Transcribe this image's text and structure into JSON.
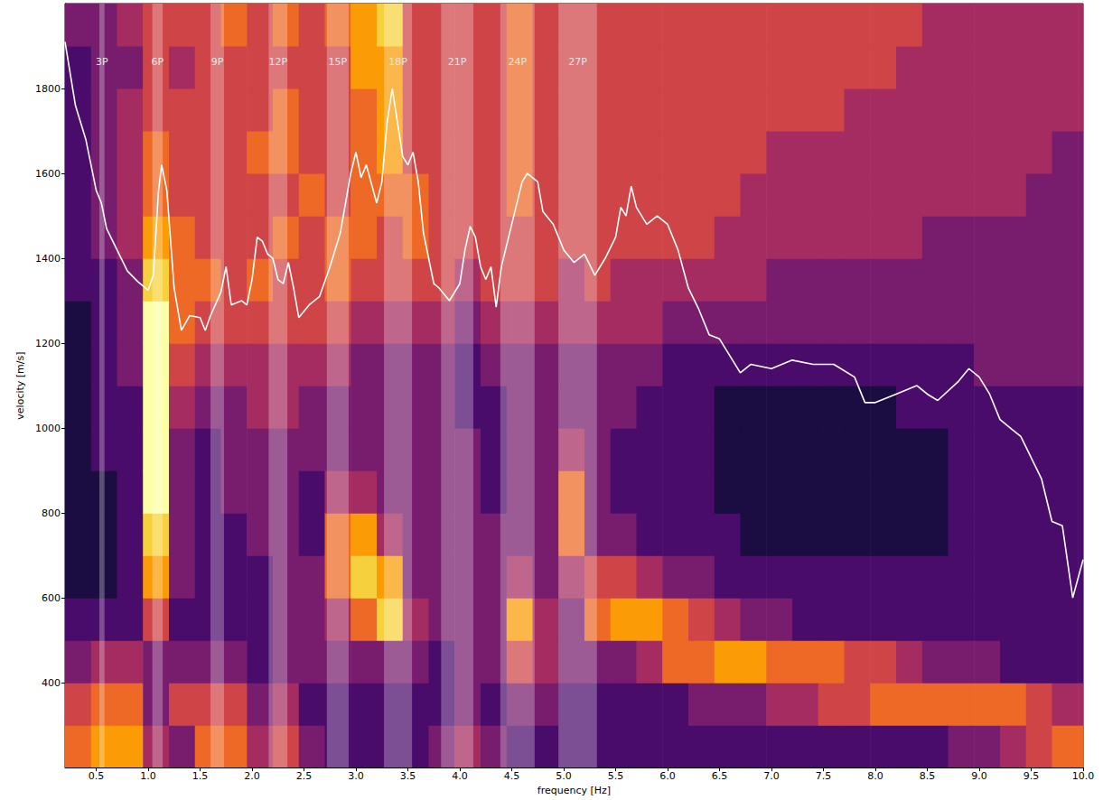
{
  "chart_data": {
    "type": "heatmap",
    "xlabel": "frequency [Hz]",
    "ylabel": "velocity [m/s]",
    "xlim": [
      0.2,
      10.0
    ],
    "ylim": [
      200,
      2000
    ],
    "xticks": [
      0.5,
      {
        "value": 1,
        "label": "1.0"
      },
      1.5,
      {
        "value": 2,
        "label": "2.0"
      },
      2.5,
      {
        "value": 3,
        "label": "3.0"
      },
      3.5,
      {
        "value": 4,
        "label": "4.0"
      },
      4.5,
      {
        "value": 5,
        "label": "5.0"
      },
      5.5,
      {
        "value": 6,
        "label": "6.0"
      },
      6.5,
      {
        "value": 7,
        "label": "7.0"
      },
      7.5,
      {
        "value": 8,
        "label": "8.0"
      },
      8.5,
      {
        "value": 9,
        "label": "9.0"
      },
      9.5,
      {
        "value": 10,
        "label": "10.0"
      }
    ],
    "yticks": [
      400,
      600,
      800,
      1000,
      1200,
      1400,
      1600,
      1800
    ],
    "grid": false,
    "x_edges": [
      0.2,
      0.45,
      0.7,
      0.95,
      1.2,
      1.45,
      1.7,
      1.95,
      2.2,
      2.45,
      2.7,
      2.95,
      3.2,
      3.45,
      3.7,
      3.95,
      4.2,
      4.45,
      4.7,
      4.95,
      5.2,
      5.45,
      5.7,
      5.95,
      6.2,
      6.45,
      6.7,
      6.95,
      7.2,
      7.45,
      7.7,
      7.95,
      8.2,
      8.45,
      8.7,
      8.95,
      9.2,
      9.45,
      9.7,
      9.95,
      10.0
    ],
    "y_edges": [
      200,
      300,
      400,
      500,
      600,
      700,
      800,
      900,
      1000,
      1100,
      1200,
      1300,
      1400,
      1500,
      1600,
      1700,
      1800,
      1900,
      2000
    ],
    "color_range": [
      0,
      9
    ],
    "intensity": [
      [
        6,
        5,
        3,
        2,
        1,
        1,
        1,
        1,
        1,
        1,
        1,
        2,
        2,
        2,
        2,
        2,
        2,
        3
      ],
      [
        7,
        6,
        4,
        2,
        1,
        1,
        1,
        2,
        2,
        2,
        2,
        2,
        3,
        3,
        3,
        3,
        3,
        3
      ],
      [
        7,
        6,
        4,
        2,
        2,
        2,
        2,
        2,
        2,
        3,
        3,
        3,
        4,
        4,
        4,
        4,
        3,
        4
      ],
      [
        4,
        3,
        3,
        5,
        7,
        8,
        9,
        9,
        9,
        9,
        9,
        8,
        7,
        6,
        6,
        5,
        5,
        5
      ],
      [
        3,
        5,
        3,
        2,
        3,
        3,
        3,
        3,
        4,
        5,
        6,
        6,
        6,
        5,
        5,
        5,
        4,
        5
      ],
      [
        6,
        5,
        3,
        2,
        2,
        2,
        2,
        2,
        3,
        4,
        5,
        6,
        5,
        5,
        5,
        5,
        5,
        5
      ],
      [
        6,
        5,
        3,
        2,
        2,
        2,
        3,
        3,
        3,
        4,
        5,
        5,
        5,
        5,
        5,
        5,
        5,
        6
      ],
      [
        4,
        3,
        2,
        2,
        2,
        3,
        3,
        3,
        4,
        4,
        5,
        6,
        5,
        5,
        6,
        5,
        5,
        5
      ],
      [
        5,
        4,
        3,
        3,
        3,
        3,
        3,
        3,
        4,
        4,
        5,
        5,
        6,
        5,
        6,
        6,
        5,
        6
      ],
      [
        3,
        2,
        3,
        3,
        3,
        2,
        2,
        3,
        3,
        4,
        5,
        5,
        5,
        6,
        5,
        5,
        5,
        5
      ],
      [
        2,
        2,
        3,
        4,
        6,
        6,
        4,
        3,
        3,
        4,
        5,
        6,
        6,
        5,
        5,
        5,
        5,
        6
      ],
      [
        2,
        2,
        3,
        6,
        8,
        7,
        4,
        3,
        3,
        3,
        4,
        5,
        6,
        6,
        6,
        6,
        7,
        7
      ],
      [
        2,
        2,
        3,
        8,
        7,
        4,
        3,
        3,
        3,
        3,
        4,
        5,
        5,
        6,
        7,
        7,
        7,
        8
      ],
      [
        2,
        2,
        3,
        4,
        3,
        3,
        3,
        3,
        3,
        3,
        4,
        5,
        6,
        6,
        5,
        5,
        5,
        5
      ],
      [
        3,
        2,
        2,
        3,
        3,
        3,
        3,
        3,
        3,
        3,
        4,
        5,
        5,
        5,
        5,
        5,
        5,
        5
      ],
      [
        4,
        3,
        3,
        3,
        3,
        3,
        3,
        3,
        2,
        2,
        3,
        4,
        5,
        5,
        5,
        5,
        5,
        5
      ],
      [
        3,
        2,
        3,
        3,
        3,
        3,
        2,
        2,
        2,
        3,
        4,
        5,
        5,
        5,
        5,
        5,
        5,
        5
      ],
      [
        2,
        3,
        5,
        7,
        4,
        3,
        3,
        3,
        3,
        3,
        4,
        5,
        5,
        6,
        6,
        6,
        6,
        6
      ],
      [
        2,
        3,
        4,
        4,
        3,
        3,
        3,
        3,
        3,
        3,
        4,
        5,
        5,
        5,
        5,
        5,
        5,
        5
      ],
      [
        2,
        2,
        3,
        3,
        4,
        6,
        6,
        4,
        3,
        3,
        4,
        4,
        5,
        5,
        5,
        5,
        5,
        5
      ],
      [
        2,
        2,
        3,
        6,
        5,
        3,
        3,
        3,
        3,
        3,
        4,
        5,
        5,
        5,
        5,
        5,
        5,
        5
      ],
      [
        2,
        2,
        3,
        7,
        5,
        3,
        2,
        2,
        3,
        3,
        4,
        4,
        5,
        5,
        5,
        5,
        5,
        5
      ],
      [
        2,
        2,
        4,
        7,
        4,
        2,
        2,
        2,
        2,
        3,
        4,
        4,
        5,
        5,
        5,
        5,
        5,
        5
      ],
      [
        2,
        2,
        6,
        6,
        3,
        2,
        2,
        2,
        2,
        2,
        3,
        4,
        5,
        5,
        5,
        5,
        5,
        5
      ],
      [
        2,
        3,
        6,
        5,
        3,
        2,
        2,
        2,
        2,
        2,
        3,
        4,
        5,
        5,
        5,
        5,
        5,
        5
      ],
      [
        2,
        3,
        7,
        4,
        2,
        2,
        1,
        1,
        1,
        2,
        3,
        4,
        4,
        5,
        5,
        5,
        5,
        5
      ],
      [
        2,
        3,
        7,
        3,
        2,
        1,
        1,
        1,
        1,
        2,
        3,
        4,
        4,
        4,
        5,
        5,
        5,
        5
      ],
      [
        2,
        4,
        6,
        3,
        2,
        1,
        1,
        1,
        1,
        2,
        3,
        3,
        4,
        4,
        4,
        5,
        5,
        5
      ],
      [
        2,
        4,
        6,
        2,
        2,
        1,
        1,
        1,
        1,
        2,
        3,
        3,
        4,
        4,
        4,
        5,
        5,
        5
      ],
      [
        2,
        5,
        6,
        2,
        2,
        1,
        1,
        1,
        1,
        2,
        3,
        3,
        4,
        4,
        4,
        5,
        5,
        5
      ],
      [
        2,
        5,
        5,
        2,
        2,
        1,
        1,
        1,
        1,
        2,
        3,
        3,
        4,
        4,
        4,
        4,
        5,
        5
      ],
      [
        2,
        6,
        5,
        2,
        2,
        1,
        1,
        1,
        1,
        2,
        3,
        3,
        4,
        4,
        4,
        4,
        5,
        5
      ],
      [
        2,
        6,
        4,
        2,
        2,
        1,
        1,
        1,
        2,
        2,
        3,
        3,
        4,
        4,
        4,
        4,
        4,
        5
      ],
      [
        2,
        6,
        3,
        2,
        2,
        1,
        1,
        1,
        2,
        2,
        3,
        3,
        3,
        4,
        4,
        4,
        4,
        4
      ],
      [
        3,
        6,
        3,
        2,
        2,
        2,
        2,
        2,
        2,
        2,
        3,
        3,
        3,
        4,
        4,
        4,
        4,
        4
      ],
      [
        3,
        6,
        3,
        2,
        2,
        2,
        2,
        2,
        2,
        3,
        3,
        3,
        3,
        4,
        4,
        4,
        4,
        4
      ],
      [
        4,
        6,
        2,
        2,
        2,
        2,
        2,
        2,
        2,
        3,
        3,
        3,
        3,
        4,
        4,
        4,
        4,
        4
      ],
      [
        5,
        5,
        2,
        2,
        2,
        2,
        2,
        2,
        2,
        3,
        3,
        3,
        3,
        3,
        4,
        4,
        4,
        4
      ],
      [
        6,
        4,
        2,
        2,
        2,
        2,
        2,
        2,
        2,
        3,
        3,
        3,
        3,
        3,
        3,
        4,
        4,
        4
      ],
      [
        6,
        4,
        2,
        2,
        2,
        2,
        2,
        2,
        2,
        3,
        3,
        3,
        3,
        3,
        3,
        4,
        4,
        4
      ]
    ],
    "bands": [
      {
        "label": "3P",
        "from": 0.53,
        "to": 0.58
      },
      {
        "label": "6P",
        "from": 1.04,
        "to": 1.14
      },
      {
        "label": "9P",
        "from": 1.6,
        "to": 1.73
      },
      {
        "label": "12P",
        "from": 2.16,
        "to": 2.34
      },
      {
        "label": "15P",
        "from": 2.72,
        "to": 2.93
      },
      {
        "label": "18P",
        "from": 3.27,
        "to": 3.54
      },
      {
        "label": "21P",
        "from": 3.82,
        "to": 4.13
      },
      {
        "label": "24P",
        "from": 4.39,
        "to": 4.72
      },
      {
        "label": "27P",
        "from": 4.95,
        "to": 5.32
      }
    ],
    "series": [
      {
        "type": "line",
        "color": "#ffffff",
        "x": [
          0.2,
          0.3,
          0.4,
          0.5,
          0.55,
          0.6,
          0.7,
          0.8,
          0.9,
          1.0,
          1.05,
          1.1,
          1.13,
          1.18,
          1.25,
          1.32,
          1.4,
          1.5,
          1.55,
          1.6,
          1.7,
          1.75,
          1.8,
          1.9,
          1.95,
          2.0,
          2.05,
          2.1,
          2.15,
          2.2,
          2.25,
          2.3,
          2.35,
          2.4,
          2.45,
          2.55,
          2.65,
          2.75,
          2.85,
          2.95,
          3.0,
          3.05,
          3.1,
          3.2,
          3.25,
          3.3,
          3.35,
          3.4,
          3.45,
          3.5,
          3.55,
          3.6,
          3.65,
          3.7,
          3.75,
          3.8,
          3.9,
          4.0,
          4.05,
          4.1,
          4.15,
          4.2,
          4.25,
          4.3,
          4.35,
          4.4,
          4.5,
          4.6,
          4.65,
          4.75,
          4.8,
          4.9,
          5.0,
          5.1,
          5.2,
          5.3,
          5.4,
          5.5,
          5.55,
          5.6,
          5.65,
          5.7,
          5.8,
          5.9,
          6.0,
          6.1,
          6.2,
          6.3,
          6.4,
          6.5,
          6.6,
          6.7,
          6.8,
          7.0,
          7.2,
          7.4,
          7.6,
          7.8,
          7.9,
          8.0,
          8.2,
          8.4,
          8.5,
          8.6,
          8.8,
          8.9,
          9.0,
          9.1,
          9.2,
          9.3,
          9.4,
          9.5,
          9.6,
          9.7,
          9.8,
          9.9,
          10.0
        ],
        "values": [
          1910,
          1760,
          1680,
          1560,
          1530,
          1470,
          1420,
          1370,
          1345,
          1325,
          1360,
          1560,
          1620,
          1560,
          1330,
          1230,
          1265,
          1260,
          1230,
          1265,
          1320,
          1380,
          1290,
          1300,
          1290,
          1350,
          1450,
          1440,
          1410,
          1400,
          1350,
          1340,
          1390,
          1330,
          1260,
          1290,
          1310,
          1380,
          1460,
          1600,
          1650,
          1590,
          1620,
          1530,
          1580,
          1720,
          1800,
          1720,
          1640,
          1620,
          1650,
          1580,
          1460,
          1400,
          1340,
          1330,
          1300,
          1340,
          1420,
          1475,
          1450,
          1380,
          1350,
          1380,
          1285,
          1380,
          1480,
          1580,
          1600,
          1580,
          1510,
          1480,
          1420,
          1390,
          1410,
          1360,
          1400,
          1450,
          1520,
          1500,
          1570,
          1520,
          1480,
          1500,
          1480,
          1420,
          1330,
          1280,
          1220,
          1210,
          1170,
          1130,
          1150,
          1140,
          1160,
          1150,
          1150,
          1120,
          1060,
          1060,
          1080,
          1100,
          1080,
          1065,
          1110,
          1140,
          1120,
          1080,
          1020,
          1000,
          980,
          930,
          880,
          780,
          770,
          600,
          690
        ]
      }
    ]
  }
}
